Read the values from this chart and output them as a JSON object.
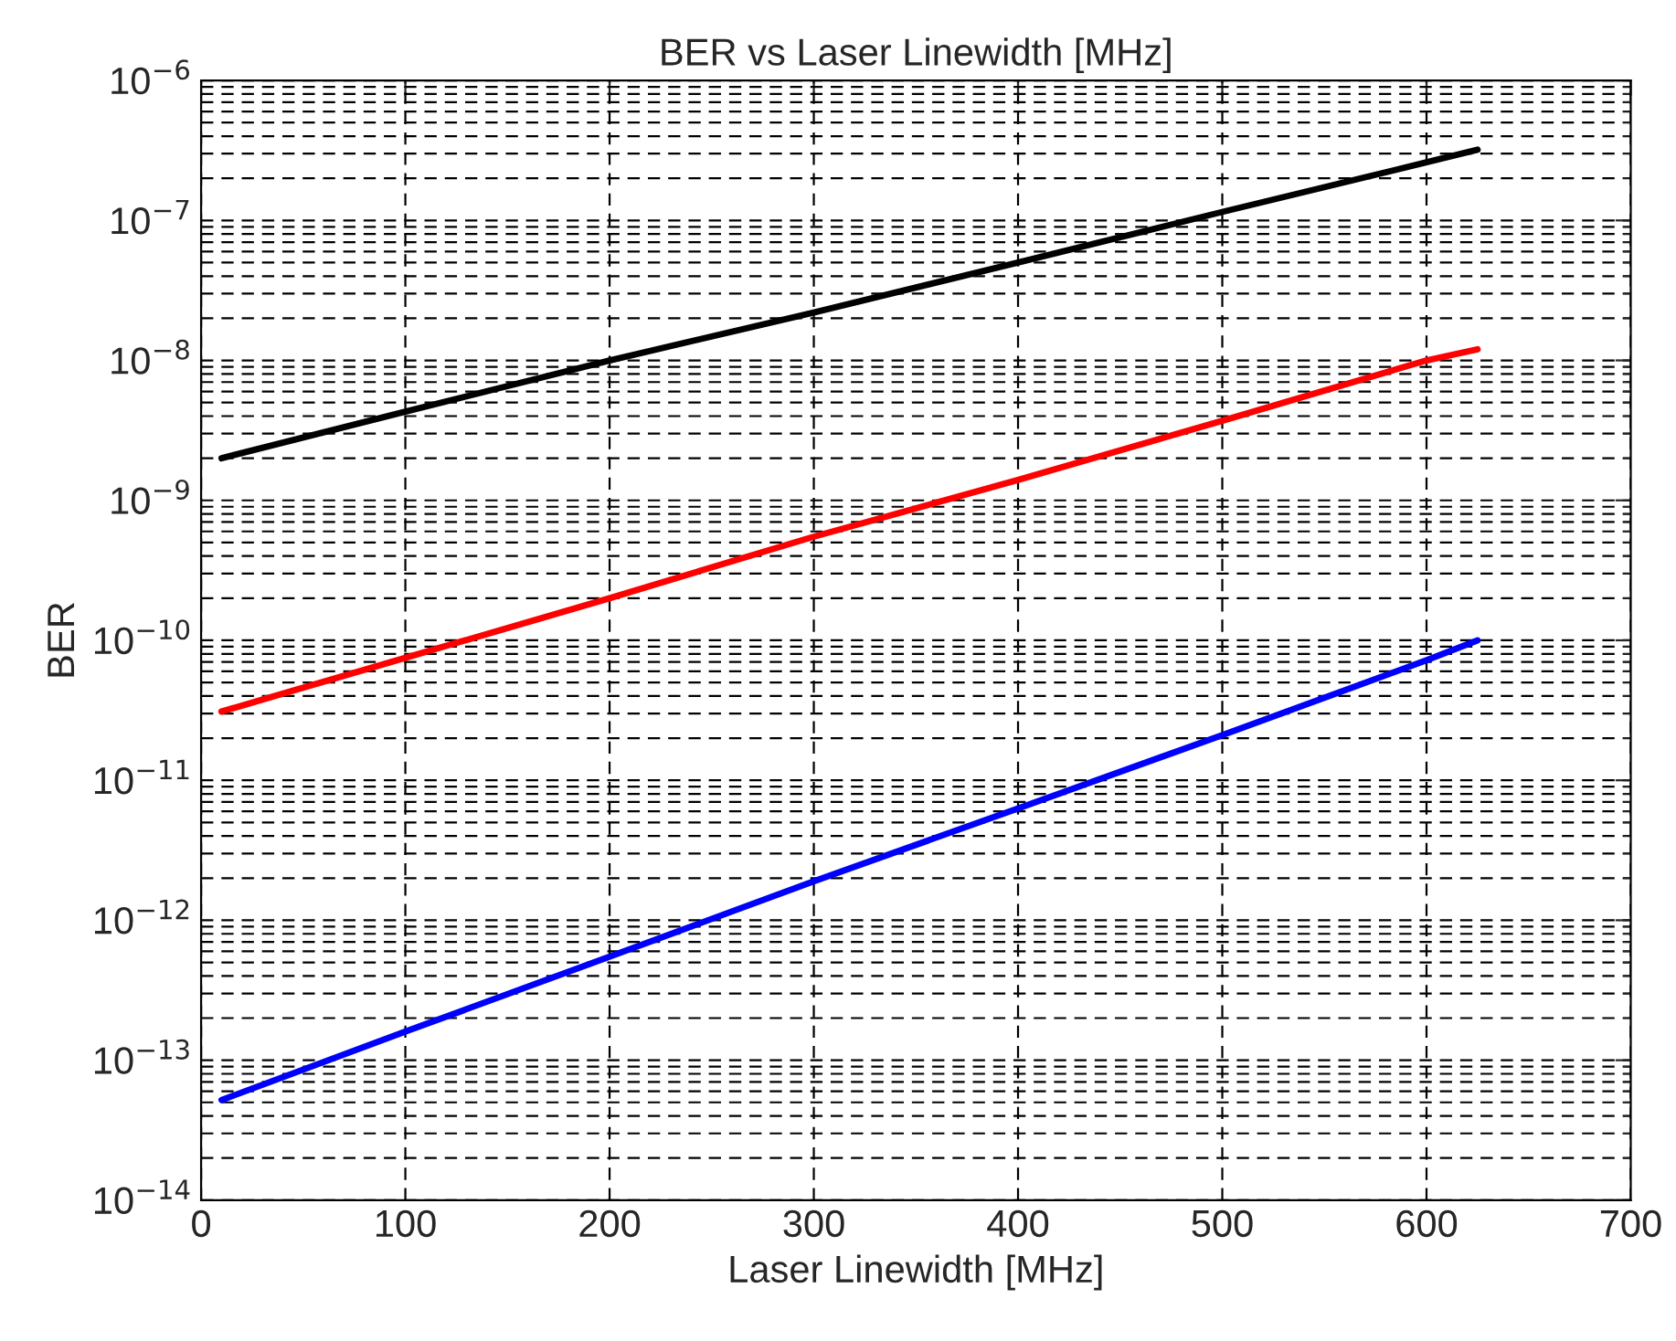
{
  "chart_data": {
    "type": "line",
    "title": "BER vs Laser Linewidth [MHz]",
    "xlabel": "Laser Linewidth [MHz]",
    "ylabel": "BER",
    "log": "y",
    "grid": true,
    "line_style": "solid",
    "xlim": [
      0,
      700
    ],
    "xticks": [
      0,
      100,
      200,
      300,
      400,
      500,
      600,
      700
    ],
    "ylim": [
      1e-14,
      1e-06
    ],
    "yticks": [
      {
        "value": 1e-14,
        "label": "10$^{−14}$"
      },
      {
        "value": 1e-13,
        "label": "10$^{−13}$"
      },
      {
        "value": 1e-12,
        "label": "10$^{−12}$"
      },
      {
        "value": 1e-11,
        "label": "10$^{−11}$"
      },
      {
        "value": 1e-10,
        "label": "10$^{−10}$"
      },
      {
        "value": 1e-09,
        "label": "10$^{−9}$"
      },
      {
        "value": 1e-08,
        "label": "10$^{−8}$"
      },
      {
        "value": 1e-07,
        "label": "10$^{−7}$"
      },
      {
        "value": 1e-06,
        "label": "10$^{−6}$"
      }
    ],
    "series": [
      {
        "color": "#000000",
        "x": [
          10,
          100,
          200,
          300,
          400,
          500,
          600,
          625
        ],
        "values": [
          2e-09,
          4.3e-09,
          1e-08,
          2.2e-08,
          5e-08,
          1.15e-07,
          2.6e-07,
          3.2e-07
        ]
      },
      {
        "color": "#ff0000",
        "x": [
          10,
          100,
          200,
          300,
          400,
          500,
          600,
          625
        ],
        "values": [
          3.1e-11,
          7.5e-11,
          2e-10,
          5.5e-10,
          1.4e-09,
          3.7e-09,
          1e-08,
          1.2e-08
        ]
      },
      {
        "color": "#0000ff",
        "x": [
          10,
          100,
          200,
          300,
          400,
          500,
          600,
          625
        ],
        "values": [
          5.2e-14,
          1.6e-13,
          5.5e-13,
          1.9e-12,
          6.3e-12,
          2.1e-11,
          7.2e-11,
          1e-10
        ]
      }
    ]
  }
}
